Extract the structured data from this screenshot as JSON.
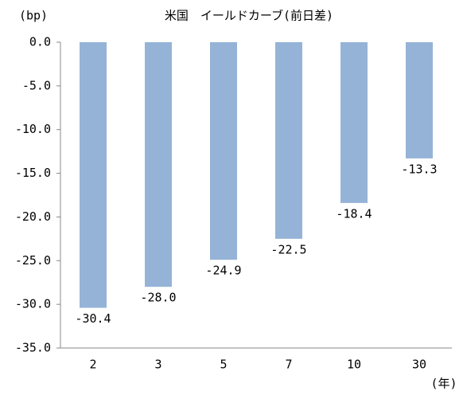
{
  "chart_data": {
    "type": "bar",
    "title": "米国　イールドカーブ(前日差)",
    "y_label": "(bp)",
    "x_label": "(年)",
    "categories": [
      "2",
      "3",
      "5",
      "7",
      "10",
      "30"
    ],
    "values": [
      -30.4,
      -28.0,
      -24.9,
      -22.5,
      -18.4,
      -13.3
    ],
    "value_labels": [
      "-30.4",
      "-28.0",
      "-24.9",
      "-22.5",
      "-18.4",
      "-13.3"
    ],
    "color": "#95b3d7",
    "ylim": [
      -35,
      0
    ],
    "yticks": [
      {
        "value": 0,
        "label": "0.0"
      },
      {
        "value": -5,
        "label": "-5.0"
      },
      {
        "value": -10,
        "label": "-10.0"
      },
      {
        "value": -15,
        "label": "-15.0"
      },
      {
        "value": -20,
        "label": "-20.0"
      },
      {
        "value": -25,
        "label": "-25.0"
      },
      {
        "value": -30,
        "label": "-30.0"
      },
      {
        "value": -35,
        "label": "-35.0"
      }
    ],
    "grid": false
  }
}
